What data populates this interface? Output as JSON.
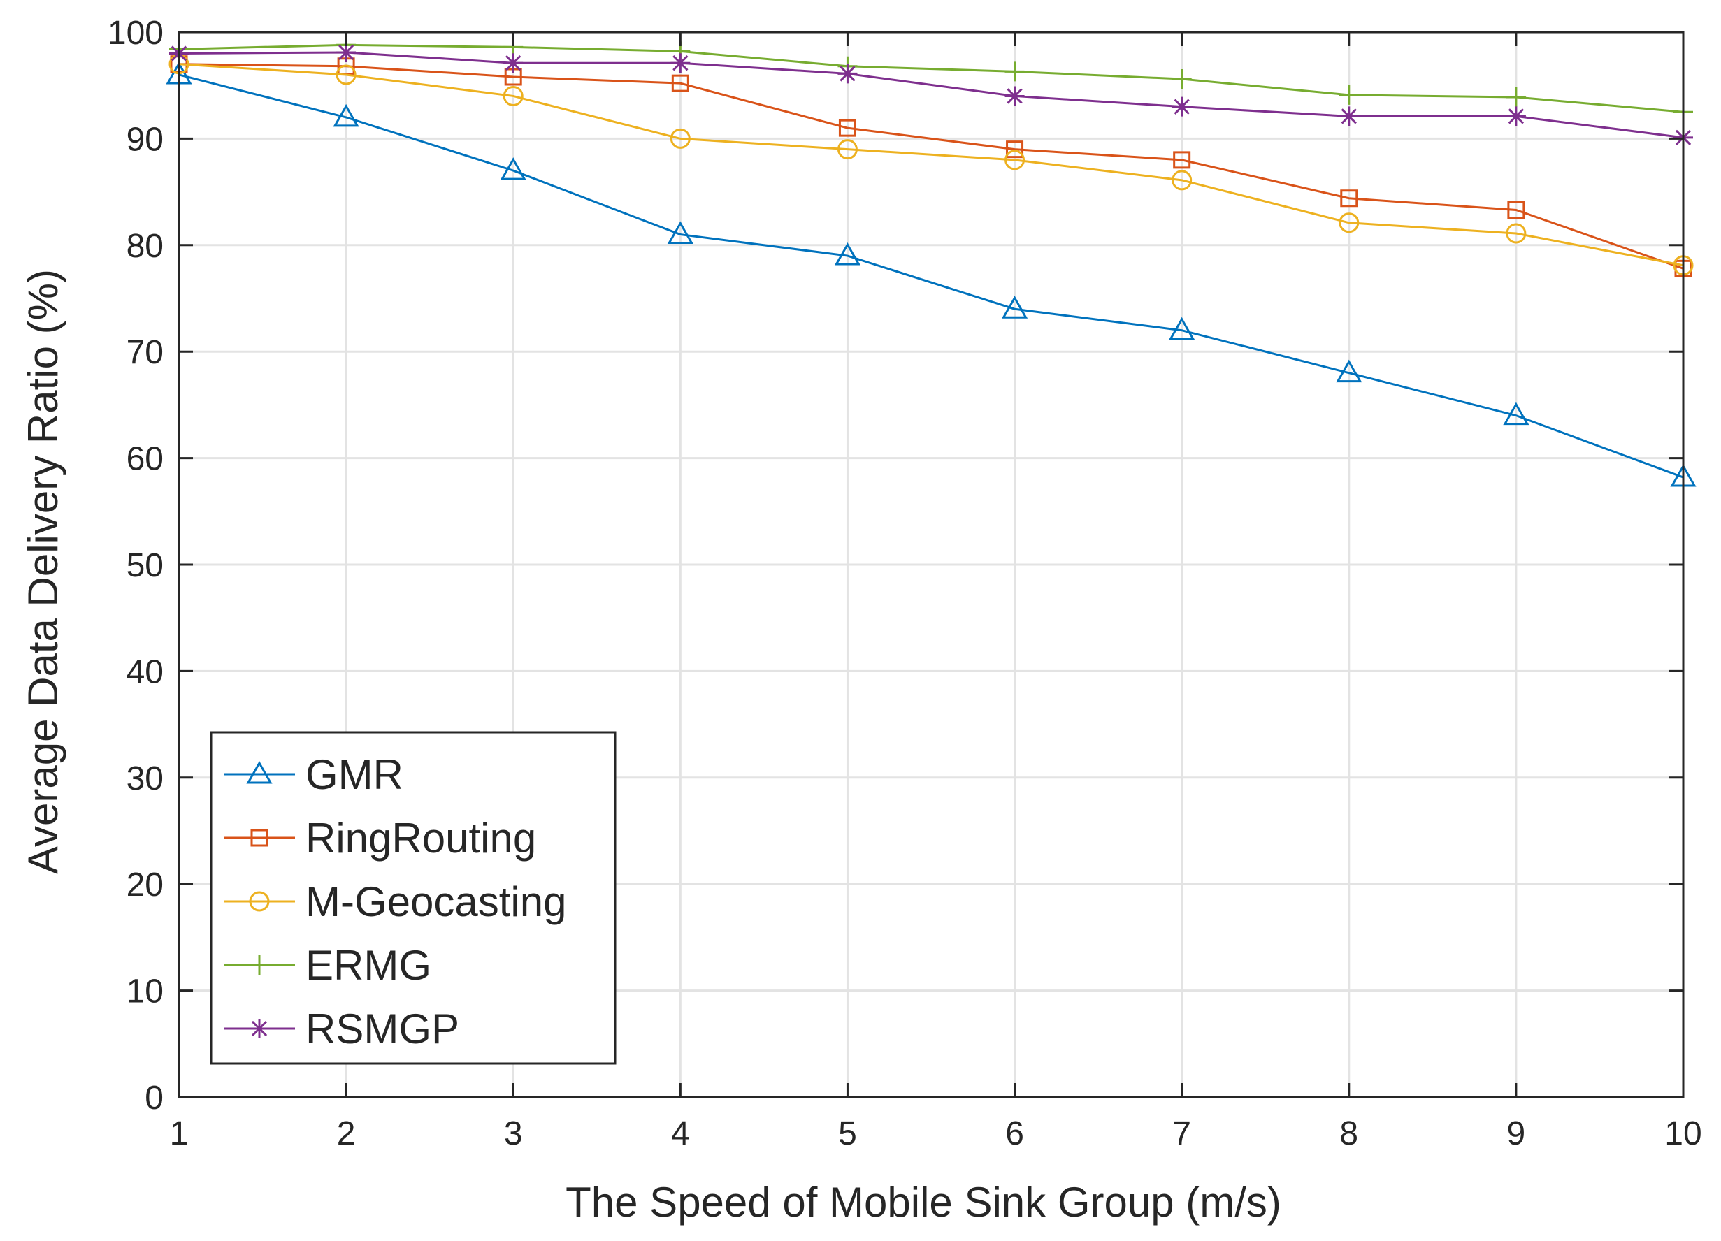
{
  "chart_data": {
    "type": "line",
    "title": "",
    "xlabel": "The Speed of Mobile Sink Group (m/s)",
    "ylabel": "Average Data Delivery Ratio (%)",
    "xlim": [
      1,
      10
    ],
    "ylim": [
      0,
      100
    ],
    "x": [
      1,
      2,
      3,
      4,
      5,
      6,
      7,
      8,
      9,
      10
    ],
    "xticks": [
      "1",
      "2",
      "3",
      "4",
      "5",
      "6",
      "7",
      "8",
      "9",
      "10"
    ],
    "yticks": [
      "0",
      "10",
      "20",
      "30",
      "40",
      "50",
      "60",
      "70",
      "80",
      "90",
      "100"
    ],
    "grid": true,
    "legend_position": "bottom-left",
    "series": [
      {
        "name": "GMR",
        "marker": "triangle",
        "color": "#0072BD",
        "values": [
          96,
          92,
          87,
          81,
          79,
          74,
          72,
          68,
          64,
          58.2
        ]
      },
      {
        "name": "RingRouting",
        "marker": "square",
        "color": "#D95319",
        "values": [
          97,
          96.8,
          95.8,
          95.2,
          91,
          89,
          88,
          84.4,
          83.3,
          77.8
        ]
      },
      {
        "name": "M-Geocasting",
        "marker": "circle",
        "color": "#EDB120",
        "values": [
          97,
          96,
          94,
          90,
          89,
          88,
          86.1,
          82.1,
          81.1,
          78.1
        ]
      },
      {
        "name": "ERMG",
        "marker": "plus",
        "color": "#77AC30",
        "values": [
          98.4,
          98.8,
          98.6,
          98.2,
          96.8,
          96.3,
          95.6,
          94.1,
          93.9,
          92.5
        ]
      },
      {
        "name": "RSMGP",
        "marker": "asterisk",
        "color": "#7E2F8E",
        "values": [
          98,
          98.1,
          97.1,
          97.1,
          96.1,
          94,
          93,
          92.1,
          92.1,
          90.1
        ]
      }
    ]
  }
}
